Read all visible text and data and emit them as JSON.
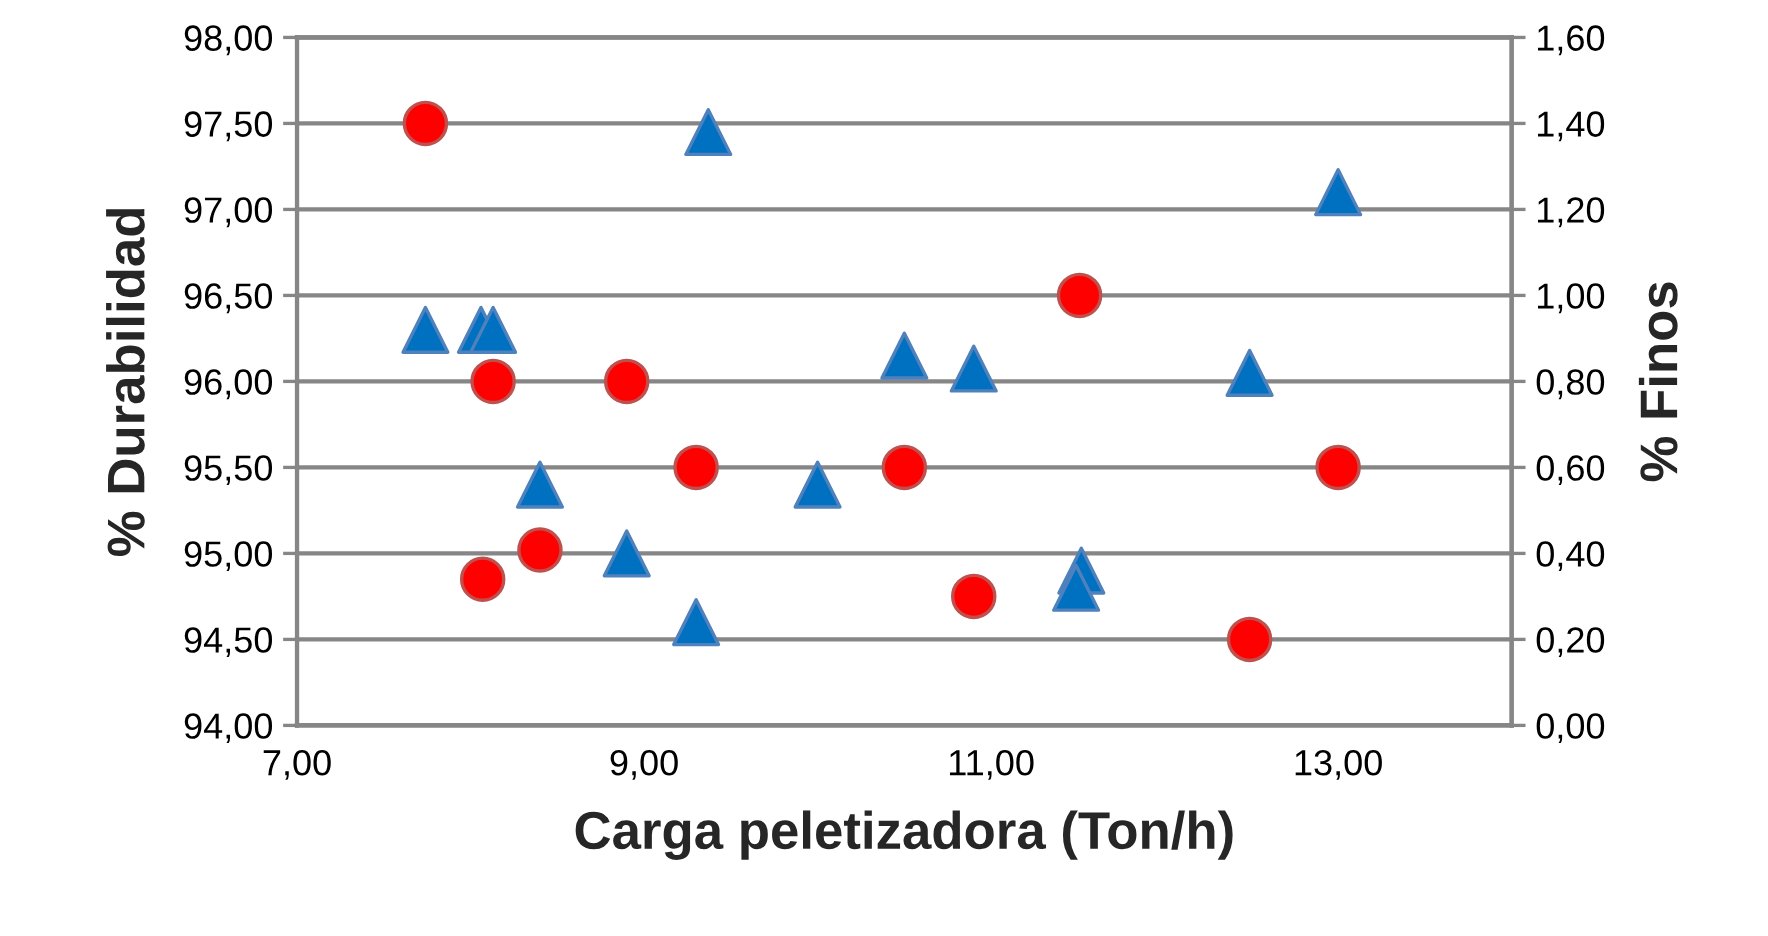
{
  "chart_data": {
    "type": "scatter",
    "xlabel": "Carga peletizadora (Ton/h)",
    "ylabel": "% Durabilidad",
    "y2label": "% Finos",
    "xlim": [
      7,
      14
    ],
    "xticks": [
      {
        "value": 7,
        "label": "7,00"
      },
      {
        "value": 9,
        "label": "9,00"
      },
      {
        "value": 11,
        "label": "11,00"
      },
      {
        "value": 13,
        "label": "13,00"
      }
    ],
    "ylim": [
      94,
      98
    ],
    "yticks": [
      {
        "value": 94,
        "label": "94,00"
      },
      {
        "value": 94.5,
        "label": "94,50"
      },
      {
        "value": 95,
        "label": "95,00"
      },
      {
        "value": 95.5,
        "label": "95,50"
      },
      {
        "value": 96,
        "label": "96,00"
      },
      {
        "value": 96.5,
        "label": "96,50"
      },
      {
        "value": 97,
        "label": "97,00"
      },
      {
        "value": 97.5,
        "label": "97,50"
      },
      {
        "value": 98,
        "label": "98,00"
      }
    ],
    "y2lim": [
      0,
      1.6
    ],
    "y2ticks": [
      {
        "value": 0,
        "label": "0,00"
      },
      {
        "value": 0.2,
        "label": "0,20"
      },
      {
        "value": 0.4,
        "label": "0,40"
      },
      {
        "value": 0.6,
        "label": "0,60"
      },
      {
        "value": 0.8,
        "label": "0,80"
      },
      {
        "value": 1.0,
        "label": "1,00"
      },
      {
        "value": 1.2,
        "label": "1,20"
      },
      {
        "value": 1.4,
        "label": "1,40"
      },
      {
        "value": 1.6,
        "label": "1,60"
      }
    ],
    "grid": "y",
    "legend": false,
    "series": [
      {
        "color": "#ff0000",
        "marker": "circle",
        "x": [
          7.74,
          8.13,
          8.9,
          9.3,
          8.07,
          8.4,
          10.5,
          10.9,
          11.51,
          12.49,
          13.0
        ],
        "values": [
          97.5,
          96.0,
          96.0,
          95.5,
          94.85,
          95.02,
          95.5,
          94.75,
          96.5,
          94.5,
          95.5
        ]
      },
      {
        "color": "#0070c0",
        "marker": "triangle",
        "axis": "y2",
        "x": [
          7.74,
          8.06,
          8.13,
          9.37,
          8.4,
          10.0,
          8.9,
          9.3,
          10.5,
          10.9,
          12.49,
          13.0,
          11.52,
          11.49
        ],
        "values": [
          0.92,
          0.92,
          0.92,
          1.38,
          0.56,
          0.56,
          0.4,
          0.24,
          0.86,
          0.83,
          0.82,
          1.24,
          0.36,
          0.32
        ]
      }
    ]
  }
}
